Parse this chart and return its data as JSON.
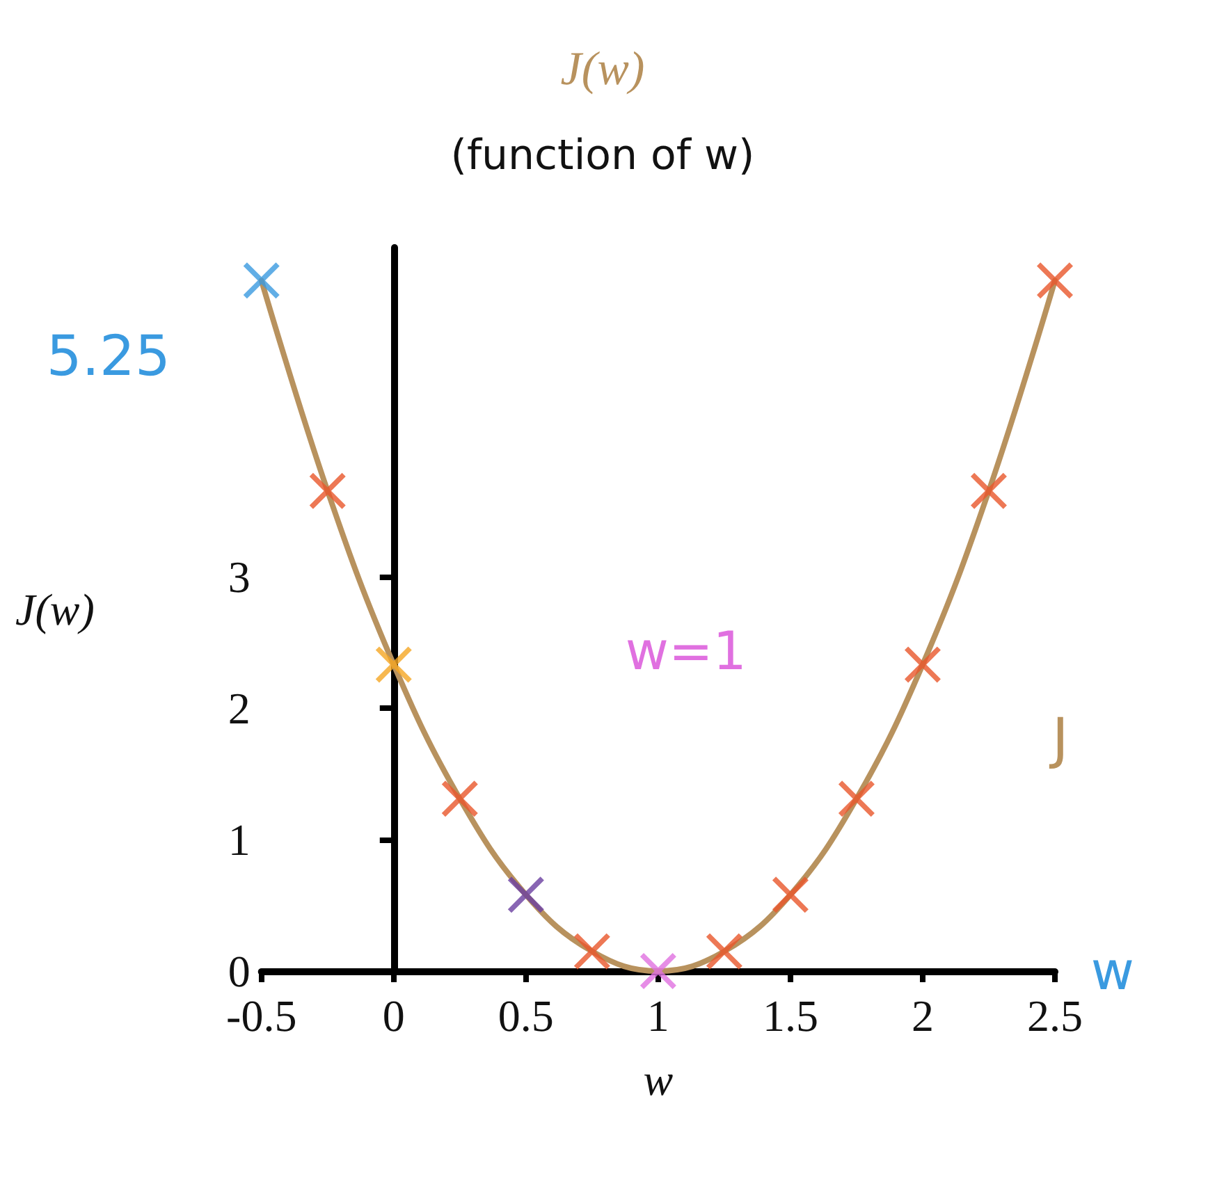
{
  "chart_data": {
    "type": "line",
    "title": "J(w)",
    "subtitle": "(function of w)",
    "xlabel": "w",
    "ylabel": "J(w)",
    "x": [
      -0.5,
      -0.25,
      0,
      0.25,
      0.5,
      0.75,
      1,
      1.25,
      1.5,
      1.75,
      2,
      2.25,
      2.5
    ],
    "series": [
      {
        "name": "J",
        "color": "#b8925e",
        "values": [
          5.25,
          3.65,
          2.33,
          1.31,
          0.58,
          0.15,
          0,
          0.15,
          0.58,
          1.31,
          2.33,
          3.65,
          5.25
        ]
      },
      {
        "type": "scatter",
        "marker": "cross",
        "colors": [
          "#3a9ae0",
          "#e8562a",
          "#f5a623",
          "#e8562a",
          "#6a3fa0",
          "#e8562a",
          "#e070e0",
          "#e8562a",
          "#e8562a",
          "#e8562a",
          "#e8562a",
          "#e8562a",
          "#e8562a"
        ],
        "values": [
          5.25,
          3.65,
          2.33,
          1.31,
          0.58,
          0.15,
          0,
          0.15,
          0.58,
          1.31,
          2.33,
          3.65,
          5.25
        ]
      }
    ],
    "xlim": [
      -0.5,
      2.5
    ],
    "xticks": [
      -0.5,
      0,
      0.5,
      1,
      1.5,
      2,
      2.5
    ],
    "ylim": [
      0,
      5.5
    ],
    "yticks": [
      0,
      1,
      2,
      3
    ],
    "annotations": [
      "5.25",
      "w=1",
      "w"
    ],
    "legend": false
  }
}
